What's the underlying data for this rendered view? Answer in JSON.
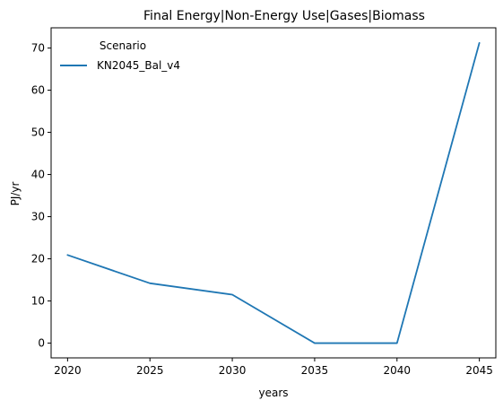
{
  "chart_data": {
    "type": "line",
    "title": "Final Energy|Non-Energy Use|Gases|Biomass",
    "xlabel": "years",
    "ylabel": "PJ/yr",
    "x": [
      2020,
      2025,
      2030,
      2035,
      2040,
      2045
    ],
    "xticks": [
      "2020",
      "2025",
      "2030",
      "2035",
      "2040",
      "2045"
    ],
    "yticks": [
      "0",
      "10",
      "20",
      "30",
      "40",
      "50",
      "60",
      "70"
    ],
    "ylim": [
      -3.5,
      74.8
    ],
    "xlim": [
      2019.0,
      2046.0
    ],
    "grid": false,
    "legend": {
      "title": "Scenario",
      "position": "top-left"
    },
    "series": [
      {
        "name": "KN2045_Bal_v4",
        "color": "#1f77b4",
        "values": [
          20.9,
          14.2,
          11.5,
          0.0,
          0.0,
          71.2
        ]
      }
    ]
  }
}
